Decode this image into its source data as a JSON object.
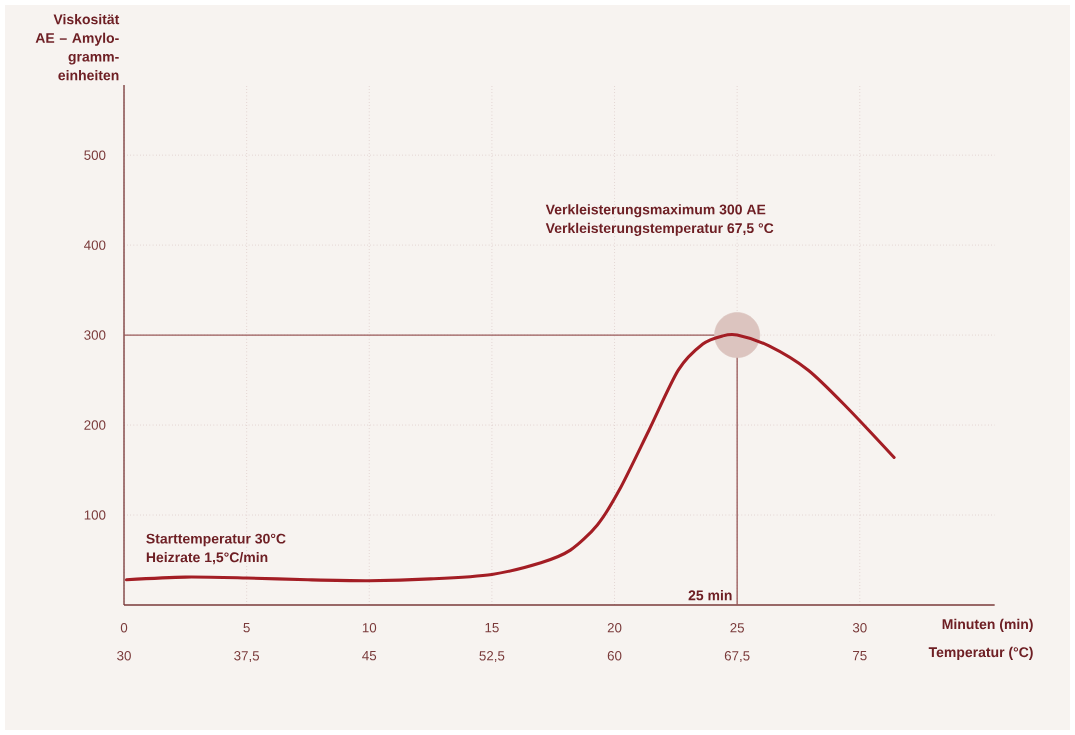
{
  "chart_data": {
    "type": "line",
    "ylabel": "Viskosität AE – Amylo-gramm-einheiten",
    "xlabel": "Minuten (min)",
    "x2label": "Temperatur (°C)",
    "xlim": [
      0,
      35.5
    ],
    "xticks": [
      0,
      5,
      10,
      15,
      20,
      25,
      30
    ],
    "x2lim": [
      30,
      83.25
    ],
    "x2ticks": [
      30,
      {
        "value": 37.5,
        "label": "37,5"
      },
      45,
      {
        "value": 52.5,
        "label": "52,5"
      },
      60,
      {
        "value": 67.5,
        "label": "67,5"
      },
      75
    ],
    "ylim": [
      0,
      578
    ],
    "yticks": [
      100,
      200,
      300,
      400,
      500
    ],
    "grid": true,
    "series": [
      {
        "color": "#a31d24",
        "x": [
          0.1,
          2.5,
          5,
          7.5,
          10,
          12.5,
          15,
          17,
          18.2,
          19.3,
          20.2,
          21.4,
          22.6,
          23.6,
          24.4,
          25,
          26.3,
          27.9,
          29.5,
          31.4
        ],
        "values": [
          28,
          31,
          30,
          28,
          27,
          29,
          34,
          47,
          61,
          89,
          128,
          194,
          261,
          290,
          299,
          300,
          288,
          261,
          219,
          164
        ]
      },
      {
        "type": "scatter",
        "marker": "circle",
        "color": "#dcc4bf",
        "x": [
          25
        ],
        "values": [
          300
        ]
      }
    ],
    "ref_lines": [
      {
        "axis": "y",
        "value": 300,
        "color": "#9a5a5a"
      },
      {
        "axis": "x",
        "value": 25,
        "color": "#9a5a5a"
      }
    ],
    "annotations": [
      "Verkleisterungsmaximum 300 AE",
      "Verkleisterungstemperatur 67,5 °C",
      "Starttemperatur 30°C",
      "Heizrate 1,5°C/min",
      {
        "text": "25 min",
        "x": 25,
        "y": 0
      }
    ]
  }
}
